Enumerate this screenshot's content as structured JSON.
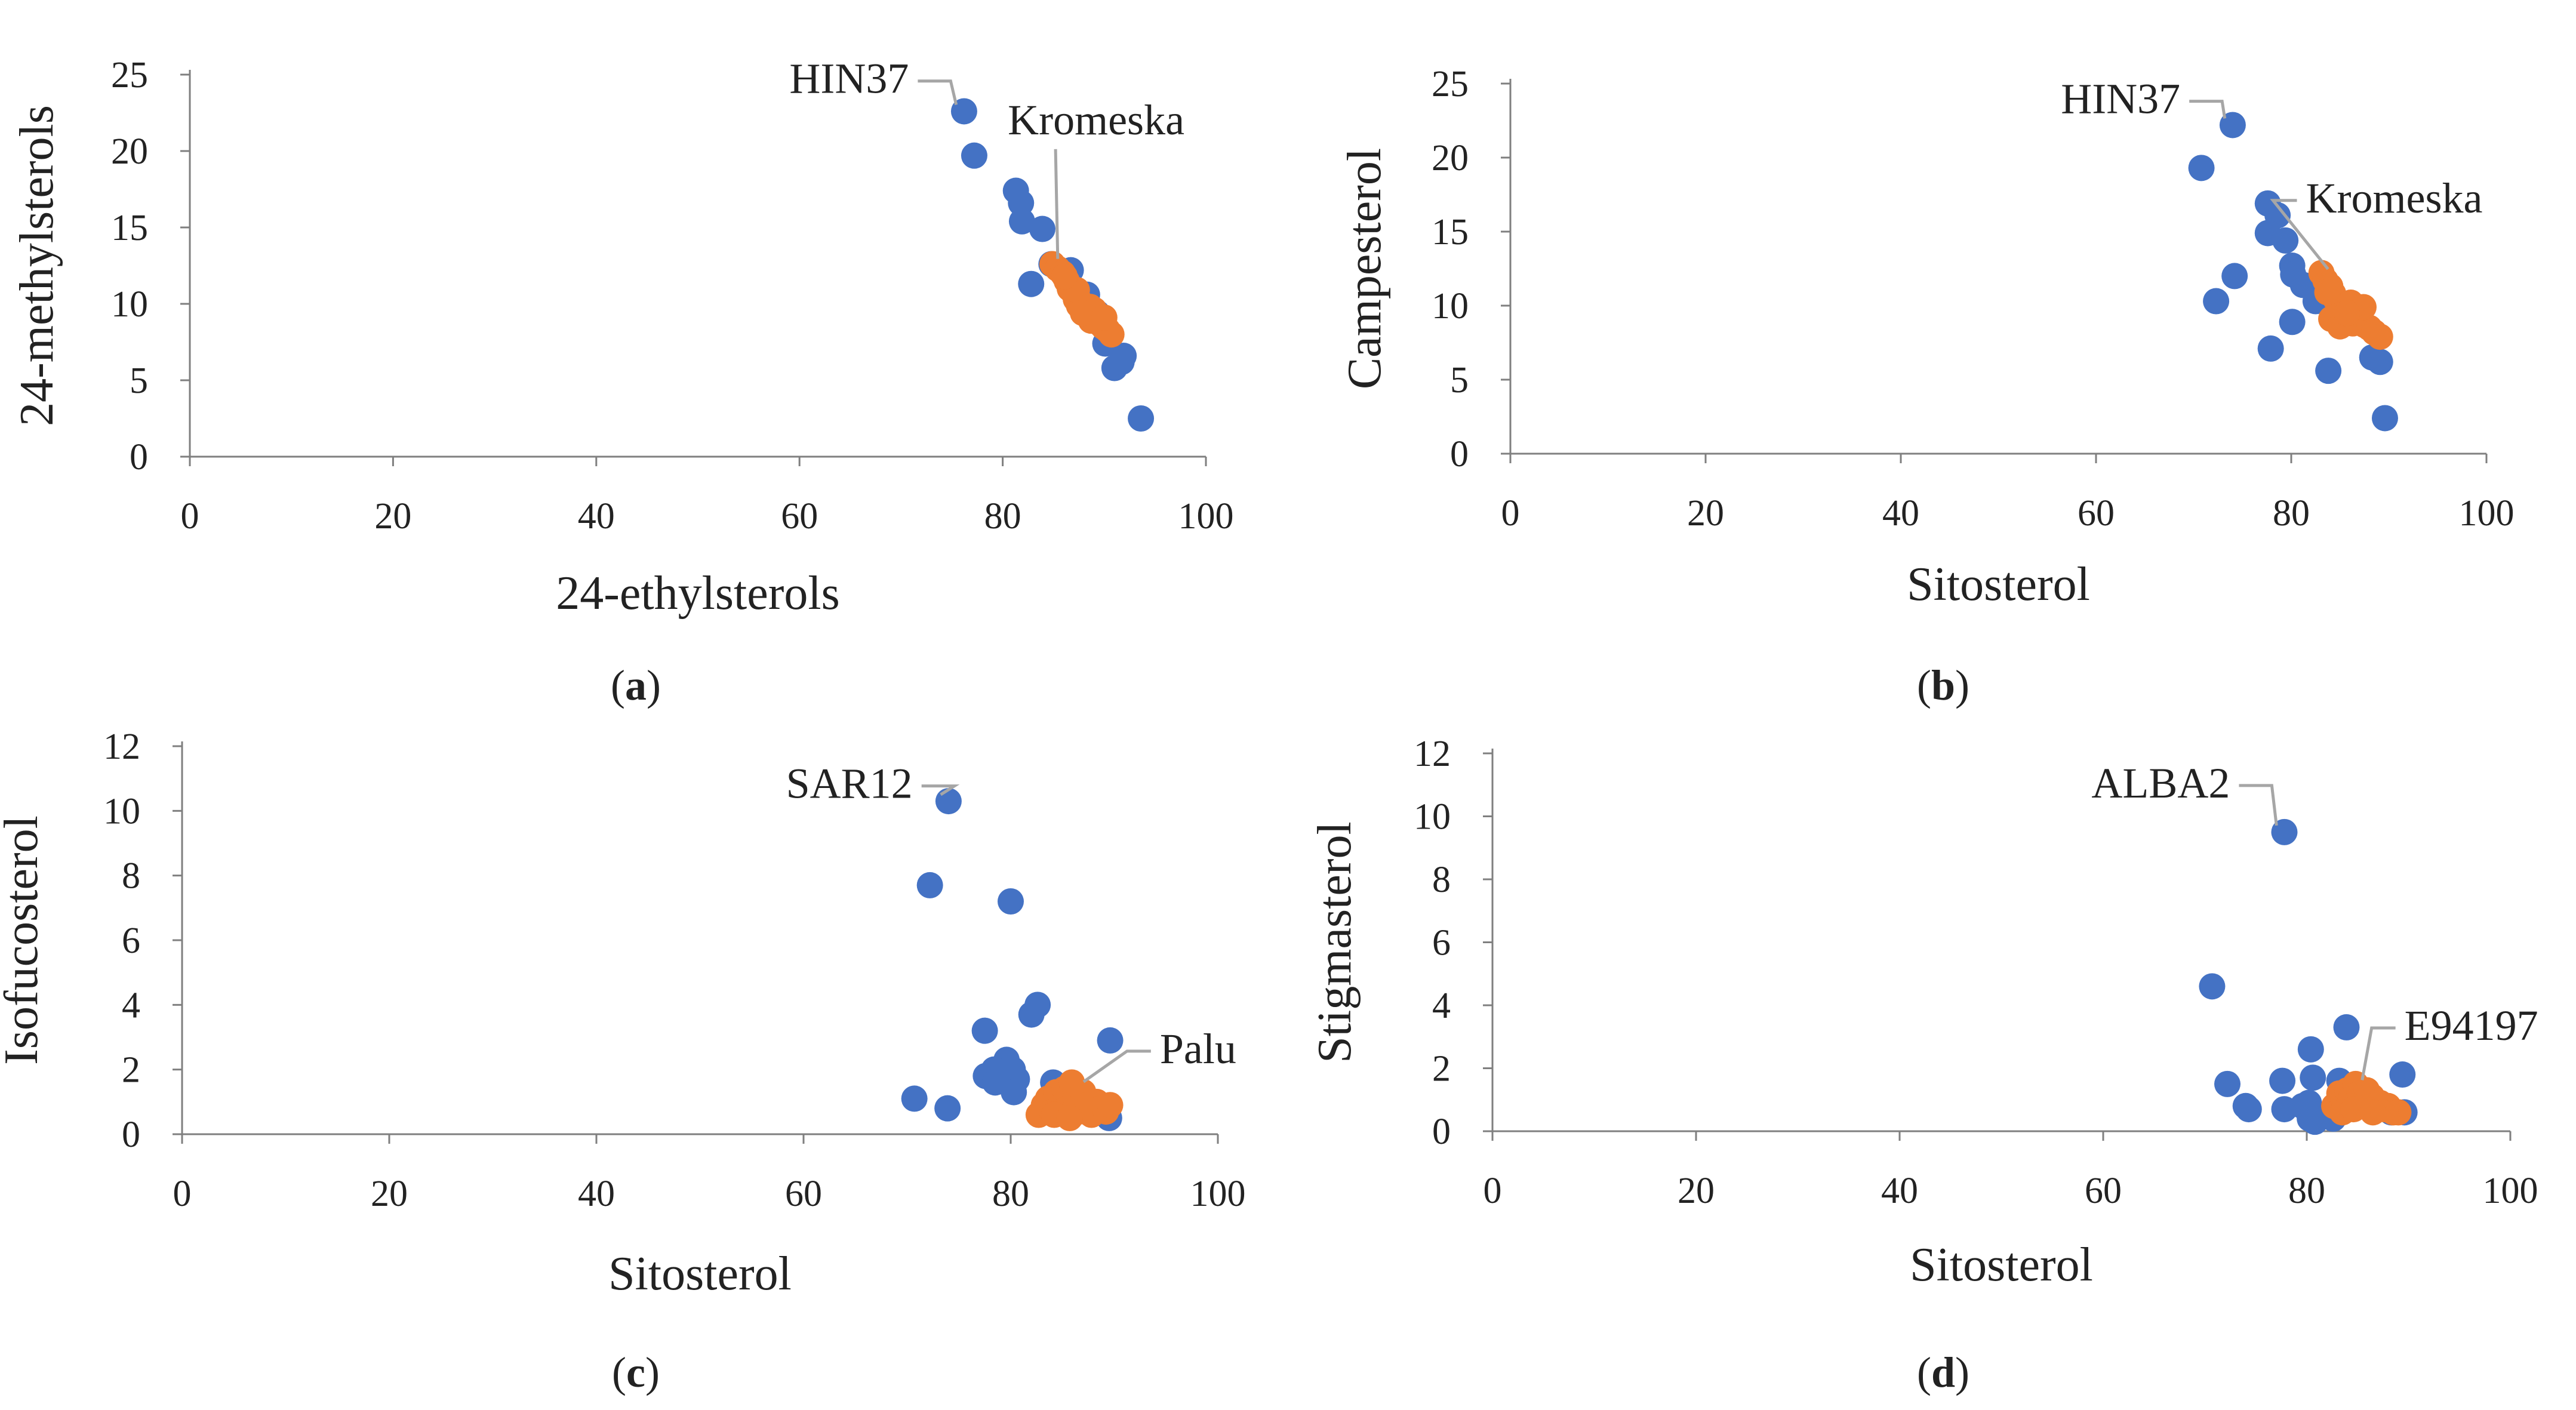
{
  "colors": {
    "series_blue": "#4472C4",
    "series_orange": "#ED7D31",
    "axis": "#7f7f7f",
    "leader": "#a6a6a6"
  },
  "chart_data": [
    {
      "panel": "a",
      "panel_label_prefix": "(",
      "panel_label_letter": "a",
      "panel_label_suffix": ")",
      "type": "scatter",
      "xlabel": "24-ethylsterols",
      "ylabel": "24-methylsterols",
      "xlim": [
        0,
        100
      ],
      "ylim": [
        0,
        25
      ],
      "xticks": [
        "0",
        "20",
        "40",
        "60",
        "80",
        "100"
      ],
      "yticks": [
        "0",
        "5",
        "10",
        "15",
        "20",
        "25"
      ],
      "series": [
        {
          "name": "blue",
          "color": "#4472C4",
          "points": [
            [
              76.2,
              22.6
            ],
            [
              77.2,
              19.7
            ],
            [
              81.3,
              17.4
            ],
            [
              81.8,
              16.6
            ],
            [
              81.9,
              15.4
            ],
            [
              83.9,
              14.9
            ],
            [
              82.8,
              11.3
            ],
            [
              84.8,
              12.6
            ],
            [
              86.7,
              12.2
            ],
            [
              88.3,
              10.6
            ],
            [
              88.0,
              9.8
            ],
            [
              89.3,
              9.4
            ],
            [
              90.1,
              7.4
            ],
            [
              91.0,
              5.8
            ],
            [
              91.7,
              6.2
            ],
            [
              91.9,
              6.6
            ],
            [
              93.6,
              2.5
            ]
          ]
        },
        {
          "name": "orange",
          "color": "#ED7D31",
          "points": [
            [
              84.9,
              12.6
            ],
            [
              85.4,
              12.3
            ],
            [
              85.9,
              12.0
            ],
            [
              86.3,
              11.5
            ],
            [
              86.6,
              11.0
            ],
            [
              86.9,
              10.8
            ],
            [
              87.2,
              10.3
            ],
            [
              87.5,
              9.9
            ],
            [
              87.8,
              10.0
            ],
            [
              88.1,
              9.5
            ],
            [
              88.4,
              9.2
            ],
            [
              88.7,
              8.9
            ],
            [
              89.0,
              9.6
            ],
            [
              89.3,
              9.0
            ],
            [
              89.6,
              8.7
            ],
            [
              89.9,
              8.5
            ],
            [
              90.3,
              8.3
            ],
            [
              90.7,
              8.0
            ],
            [
              87.3,
              10.9
            ],
            [
              88.6,
              9.8
            ],
            [
              89.1,
              8.9
            ],
            [
              86.1,
              11.8
            ],
            [
              87.9,
              9.4
            ],
            [
              90.0,
              9.1
            ]
          ]
        }
      ],
      "annotations": [
        {
          "text": "HIN37",
          "point": [
            76.2,
            22.6
          ],
          "anchor": "end",
          "label_at": [
            69,
            23.8
          ]
        },
        {
          "text": "Kromeska",
          "point": [
            84.9,
            12.6
          ],
          "anchor": "start",
          "label_at": [
            80.5,
            21.1
          ]
        }
      ]
    },
    {
      "panel": "b",
      "panel_label_prefix": "(",
      "panel_label_letter": "b",
      "panel_label_suffix": ")",
      "type": "scatter",
      "xlabel": "Sitosterol",
      "ylabel": "Campesterol",
      "xlim": [
        0,
        100
      ],
      "ylim": [
        0,
        25
      ],
      "xticks": [
        "0",
        "20",
        "40",
        "60",
        "80",
        "100"
      ],
      "yticks": [
        "0",
        "5",
        "10",
        "15",
        "20",
        "25"
      ],
      "series": [
        {
          "name": "blue",
          "color": "#4472C4",
          "points": [
            [
              74.0,
              22.2
            ],
            [
              70.8,
              19.3
            ],
            [
              77.6,
              16.9
            ],
            [
              78.6,
              16.1
            ],
            [
              77.6,
              14.9
            ],
            [
              79.4,
              14.4
            ],
            [
              80.1,
              12.7
            ],
            [
              80.2,
              12.1
            ],
            [
              81.2,
              11.4
            ],
            [
              82.5,
              10.3
            ],
            [
              72.3,
              10.3
            ],
            [
              74.2,
              12.0
            ],
            [
              80.1,
              8.9
            ],
            [
              77.9,
              7.1
            ],
            [
              83.8,
              5.6
            ],
            [
              88.3,
              6.5
            ],
            [
              89.1,
              6.2
            ],
            [
              89.6,
              2.4
            ]
          ]
        },
        {
          "name": "orange",
          "color": "#ED7D31",
          "points": [
            [
              83.1,
              12.2
            ],
            [
              83.5,
              11.7
            ],
            [
              84.0,
              11.3
            ],
            [
              84.3,
              10.8
            ],
            [
              84.6,
              10.4
            ],
            [
              84.9,
              10.0
            ],
            [
              85.2,
              9.7
            ],
            [
              85.5,
              9.3
            ],
            [
              85.9,
              9.0
            ],
            [
              86.3,
              8.8
            ],
            [
              86.7,
              9.6
            ],
            [
              87.1,
              9.2
            ],
            [
              87.5,
              8.7
            ],
            [
              88.0,
              8.5
            ],
            [
              88.5,
              8.2
            ],
            [
              89.1,
              7.9
            ],
            [
              84.1,
              9.1
            ],
            [
              85.0,
              8.6
            ],
            [
              86.1,
              10.2
            ],
            [
              83.7,
              10.9
            ],
            [
              87.4,
              9.9
            ],
            [
              85.7,
              9.5
            ]
          ]
        }
      ],
      "annotations": [
        {
          "text": "HIN37",
          "point": [
            74.0,
            22.2
          ],
          "anchor": "end",
          "label_at": [
            66.8,
            23.0
          ]
        },
        {
          "text": "Kromeska",
          "point": [
            83.1,
            12.2
          ],
          "anchor": "start",
          "label_at": [
            81.5,
            16.3
          ]
        }
      ]
    },
    {
      "panel": "c",
      "panel_label_prefix": "(",
      "panel_label_letter": "c",
      "panel_label_suffix": ")",
      "type": "scatter",
      "xlabel": "Sitosterol",
      "ylabel": "Isofucosterol",
      "xlim": [
        0,
        100
      ],
      "ylim": [
        0,
        12
      ],
      "xticks": [
        "0",
        "20",
        "40",
        "60",
        "80",
        "100"
      ],
      "yticks": [
        "0",
        "2",
        "4",
        "6",
        "8",
        "10",
        "12"
      ],
      "series": [
        {
          "name": "blue",
          "color": "#4472C4",
          "points": [
            [
              74.0,
              10.3
            ],
            [
              72.2,
              7.7
            ],
            [
              80.0,
              7.2
            ],
            [
              82.6,
              4.0
            ],
            [
              82.0,
              3.7
            ],
            [
              77.5,
              3.2
            ],
            [
              79.6,
              2.3
            ],
            [
              80.2,
              2.0
            ],
            [
              78.4,
              2.0
            ],
            [
              77.6,
              1.8
            ],
            [
              78.5,
              1.6
            ],
            [
              80.6,
              1.7
            ],
            [
              80.3,
              1.3
            ],
            [
              70.7,
              1.1
            ],
            [
              73.9,
              0.8
            ],
            [
              84.1,
              1.6
            ],
            [
              89.6,
              2.9
            ],
            [
              89.5,
              0.5
            ]
          ]
        },
        {
          "name": "orange",
          "color": "#ED7D31",
          "points": [
            [
              82.7,
              0.6
            ],
            [
              83.2,
              0.9
            ],
            [
              83.6,
              1.1
            ],
            [
              84.0,
              0.7
            ],
            [
              84.4,
              1.3
            ],
            [
              84.8,
              0.9
            ],
            [
              85.2,
              1.4
            ],
            [
              85.5,
              0.8
            ],
            [
              85.9,
              1.6
            ],
            [
              86.3,
              1.1
            ],
            [
              86.6,
              0.7
            ],
            [
              87.0,
              1.3
            ],
            [
              87.4,
              0.9
            ],
            [
              87.8,
              0.6
            ],
            [
              88.3,
              1.0
            ],
            [
              88.7,
              0.8
            ],
            [
              89.2,
              0.7
            ],
            [
              89.6,
              0.9
            ],
            [
              84.2,
              0.6
            ],
            [
              85.7,
              0.5
            ]
          ]
        }
      ],
      "annotations": [
        {
          "text": "SAR12",
          "point": [
            74.0,
            10.3
          ],
          "anchor": "end",
          "label_at": [
            68.8,
            10.4
          ]
        },
        {
          "text": "Palu",
          "point": [
            86.4,
            1.5
          ],
          "anchor": "start",
          "label_at": [
            94.4,
            2.2
          ]
        }
      ]
    },
    {
      "panel": "d",
      "panel_label_prefix": "(",
      "panel_label_letter": "d",
      "panel_label_suffix": ")",
      "type": "scatter",
      "xlabel": "Sitosterol",
      "ylabel": "Stigmasterol",
      "xlim": [
        0,
        100
      ],
      "ylim": [
        0,
        12
      ],
      "xticks": [
        "0",
        "20",
        "40",
        "60",
        "80",
        "100"
      ],
      "yticks": [
        "0",
        "2",
        "4",
        "6",
        "8",
        "10",
        "12"
      ],
      "series": [
        {
          "name": "blue",
          "color": "#4472C4",
          "points": [
            [
              77.8,
              9.5
            ],
            [
              70.7,
              4.6
            ],
            [
              72.2,
              1.5
            ],
            [
              74.0,
              0.8
            ],
            [
              74.3,
              0.7
            ],
            [
              77.6,
              1.6
            ],
            [
              77.8,
              0.7
            ],
            [
              79.6,
              0.8
            ],
            [
              80.2,
              0.9
            ],
            [
              80.4,
              2.6
            ],
            [
              80.6,
              1.7
            ],
            [
              80.3,
              0.4
            ],
            [
              82.0,
              0.5
            ],
            [
              82.6,
              0.4
            ],
            [
              83.2,
              1.6
            ],
            [
              83.9,
              3.3
            ],
            [
              88.3,
              0.6
            ],
            [
              89.4,
              1.8
            ],
            [
              89.6,
              0.6
            ],
            [
              80.8,
              0.3
            ]
          ]
        },
        {
          "name": "orange",
          "color": "#ED7D31",
          "points": [
            [
              82.7,
              0.8
            ],
            [
              83.2,
              1.2
            ],
            [
              83.6,
              1.0
            ],
            [
              84.0,
              1.3
            ],
            [
              84.4,
              1.1
            ],
            [
              84.8,
              1.5
            ],
            [
              85.2,
              1.2
            ],
            [
              85.6,
              0.9
            ],
            [
              86.0,
              1.0
            ],
            [
              86.4,
              1.1
            ],
            [
              86.8,
              0.8
            ],
            [
              87.2,
              0.9
            ],
            [
              87.6,
              0.7
            ],
            [
              88.0,
              0.8
            ],
            [
              88.5,
              0.6
            ],
            [
              89.0,
              0.6
            ],
            [
              83.5,
              0.6
            ],
            [
              84.6,
              0.7
            ],
            [
              85.9,
              1.3
            ],
            [
              86.5,
              0.6
            ]
          ]
        }
      ],
      "annotations": [
        {
          "text": "ALBA2",
          "point": [
            77.8,
            9.5
          ],
          "anchor": "end",
          "label_at": [
            70.7,
            10.6
          ]
        },
        {
          "text": "E94197",
          "point": [
            84.8,
            1.5
          ],
          "anchor": "start",
          "label_at": [
            89.6,
            2.9
          ]
        }
      ]
    }
  ]
}
